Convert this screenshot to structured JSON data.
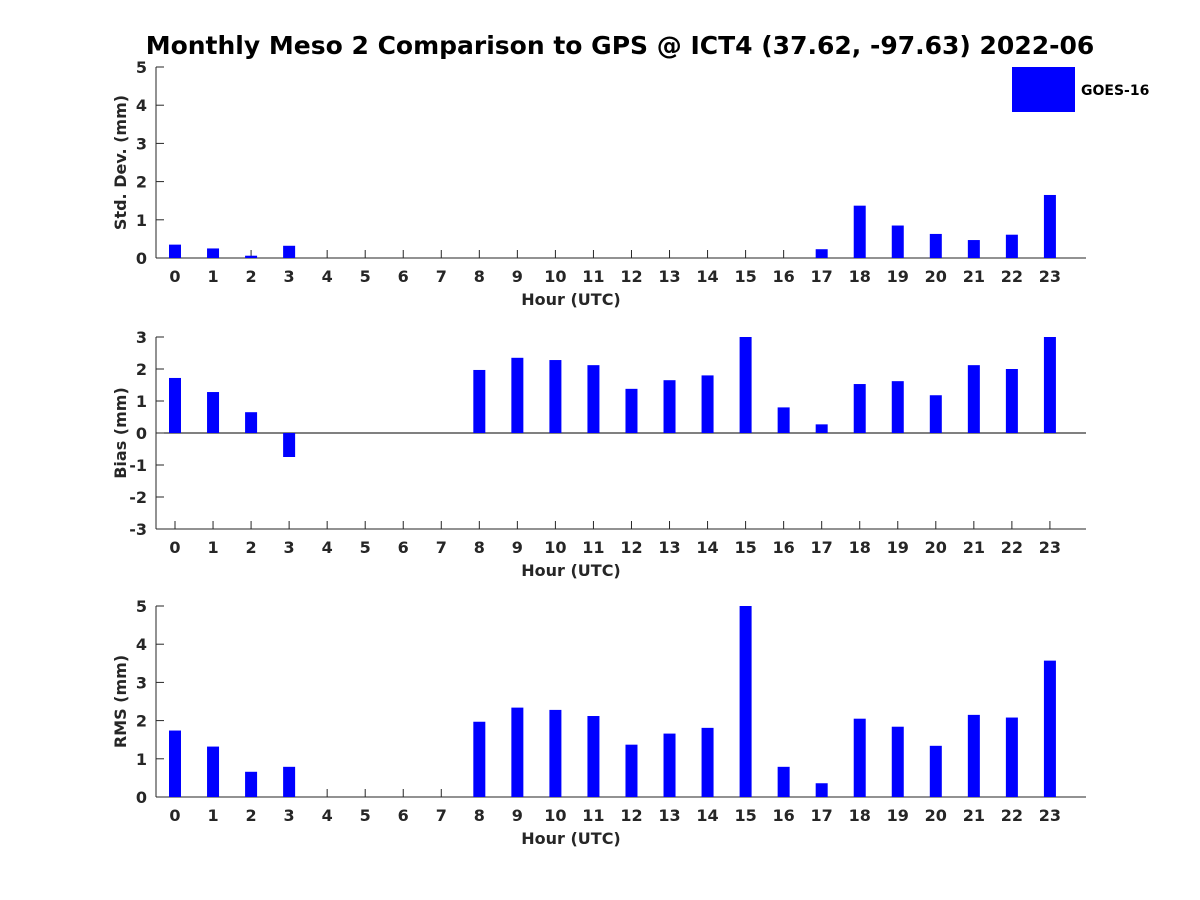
{
  "title": "Monthly Meso 2 Comparison to GPS @ ICT4 (37.62, -97.63) 2022-06",
  "legend": {
    "label": "GOES-16",
    "color": "#0000ff"
  },
  "chart_data": [
    {
      "type": "bar",
      "name": "std-dev",
      "ylabel": "Std. Dev. (mm)",
      "xlabel": "Hour (UTC)",
      "categories": [
        "0",
        "1",
        "2",
        "3",
        "4",
        "5",
        "6",
        "7",
        "8",
        "9",
        "10",
        "11",
        "12",
        "13",
        "14",
        "15",
        "16",
        "17",
        "18",
        "19",
        "20",
        "21",
        "22",
        "23"
      ],
      "values": [
        0.35,
        0.25,
        0.06,
        0.32,
        0,
        0,
        0,
        0,
        0,
        0,
        0,
        0,
        0,
        0,
        0,
        0,
        0,
        0.23,
        1.37,
        0.85,
        0.63,
        0.47,
        0.61,
        1.65
      ],
      "ylim": [
        0,
        5
      ],
      "yticks": [
        "0",
        "1",
        "2",
        "3",
        "4",
        "5"
      ],
      "color": "#0000ff"
    },
    {
      "type": "bar",
      "name": "bias",
      "ylabel": "Bias (mm)",
      "xlabel": "Hour (UTC)",
      "categories": [
        "0",
        "1",
        "2",
        "3",
        "4",
        "5",
        "6",
        "7",
        "8",
        "9",
        "10",
        "11",
        "12",
        "13",
        "14",
        "15",
        "16",
        "17",
        "18",
        "19",
        "20",
        "21",
        "22",
        "23"
      ],
      "values": [
        1.72,
        1.28,
        0.65,
        -0.75,
        0,
        0,
        0,
        0,
        1.97,
        2.35,
        2.28,
        2.12,
        1.38,
        1.65,
        1.8,
        3.0,
        0.8,
        0.27,
        1.53,
        1.62,
        1.18,
        2.12,
        2.0,
        3.0
      ],
      "ylim": [
        -3,
        3
      ],
      "yticks": [
        "-3",
        "-2",
        "-1",
        "0",
        "1",
        "2",
        "3"
      ],
      "zero_line": true,
      "color": "#0000ff"
    },
    {
      "type": "bar",
      "name": "rms",
      "ylabel": "RMS (mm)",
      "xlabel": "Hour (UTC)",
      "categories": [
        "0",
        "1",
        "2",
        "3",
        "4",
        "5",
        "6",
        "7",
        "8",
        "9",
        "10",
        "11",
        "12",
        "13",
        "14",
        "15",
        "16",
        "17",
        "18",
        "19",
        "20",
        "21",
        "22",
        "23"
      ],
      "values": [
        1.74,
        1.32,
        0.66,
        0.79,
        0,
        0,
        0,
        0,
        1.97,
        2.34,
        2.28,
        2.12,
        1.37,
        1.66,
        1.81,
        5.0,
        0.79,
        0.36,
        2.05,
        1.84,
        1.34,
        2.15,
        2.08,
        3.57
      ],
      "ylim": [
        0,
        5
      ],
      "yticks": [
        "0",
        "1",
        "2",
        "3",
        "4",
        "5"
      ],
      "color": "#0000ff"
    }
  ]
}
